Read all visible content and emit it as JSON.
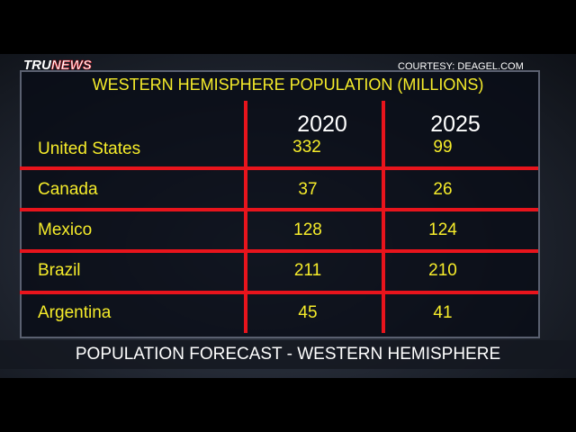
{
  "header": {
    "logo": [
      "TRU",
      "NEWS"
    ],
    "credit": "COURTESY:  DEAGEL.COM"
  },
  "table": {
    "title": "WESTERN HEMISPHERE POPULATION (MILLIONS)",
    "columns": [
      "2020",
      "2025"
    ],
    "rows": [
      [
        "United States",
        332,
        99
      ],
      [
        "Canada",
        37,
        26
      ],
      [
        "Mexico",
        128,
        124
      ],
      [
        "Brazil",
        211,
        210
      ],
      [
        "Argentina",
        45,
        41
      ]
    ]
  },
  "caption": "POPULATION FORECAST - WESTERN HEMISPHERE"
}
